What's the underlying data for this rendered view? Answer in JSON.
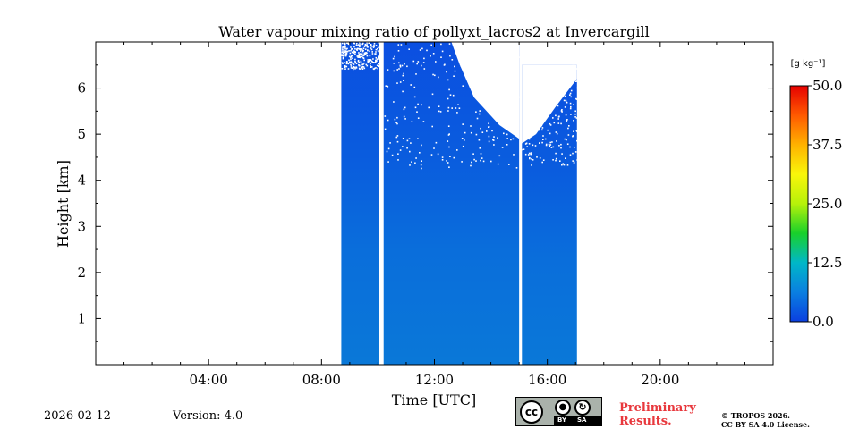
{
  "chart_data": {
    "type": "heatmap",
    "title": "Water vapour mixing ratio of pollyxt_lacros2 at Invercargill",
    "xlabel": "Time [UTC]",
    "ylabel": "Height [km]",
    "xlim_hours": [
      0,
      24
    ],
    "ylim_km": [
      0,
      7
    ],
    "x_tick_labels": [
      "04:00",
      "08:00",
      "12:00",
      "16:00",
      "20:00"
    ],
    "x_tick_values_hours": [
      4,
      8,
      12,
      16,
      20
    ],
    "y_tick_labels": [
      "1",
      "2",
      "3",
      "4",
      "5",
      "6"
    ],
    "y_tick_values_km": [
      1,
      2,
      3,
      4,
      5,
      6
    ],
    "colorbar": {
      "unit_label": "[g kg⁻¹]",
      "min": 0.0,
      "max": 50.0,
      "tick_labels": [
        "50.0",
        "37.5",
        "25.0",
        "12.5",
        "0.0"
      ],
      "tick_values": [
        50.0,
        37.5,
        25.0,
        12.5,
        0.0
      ],
      "colormap": [
        "#0b3fe0",
        "#0a7fe0",
        "#00b7c8",
        "#19d12a",
        "#b6f20a",
        "#f9f60a",
        "#ffb200",
        "#ff5a00",
        "#e60000"
      ]
    },
    "data_segments": [
      {
        "start_h": 8.7,
        "end_h": 10.05,
        "top_km": 7.0,
        "cloud_top_km": 6.5
      },
      {
        "start_h": 10.2,
        "end_h": 15.0,
        "top_km": 7.0,
        "cloud_top_km": 4.6
      },
      {
        "start_h": 15.1,
        "end_h": 17.05,
        "top_km": 6.5,
        "cloud_top_km": 4.6
      }
    ],
    "typical_value_g_per_kg": 4
  },
  "footer": {
    "date": "2026-02-12",
    "version": "Version: 4.0",
    "preliminary_line1": "Preliminary",
    "preliminary_line2": "Results.",
    "copyright_line1": "© TROPOS 2026.",
    "copyright_line2": "CC BY SA 4.0 License.",
    "cc_badge": {
      "cc": "cc",
      "by": "BY",
      "sa": "SA"
    }
  }
}
